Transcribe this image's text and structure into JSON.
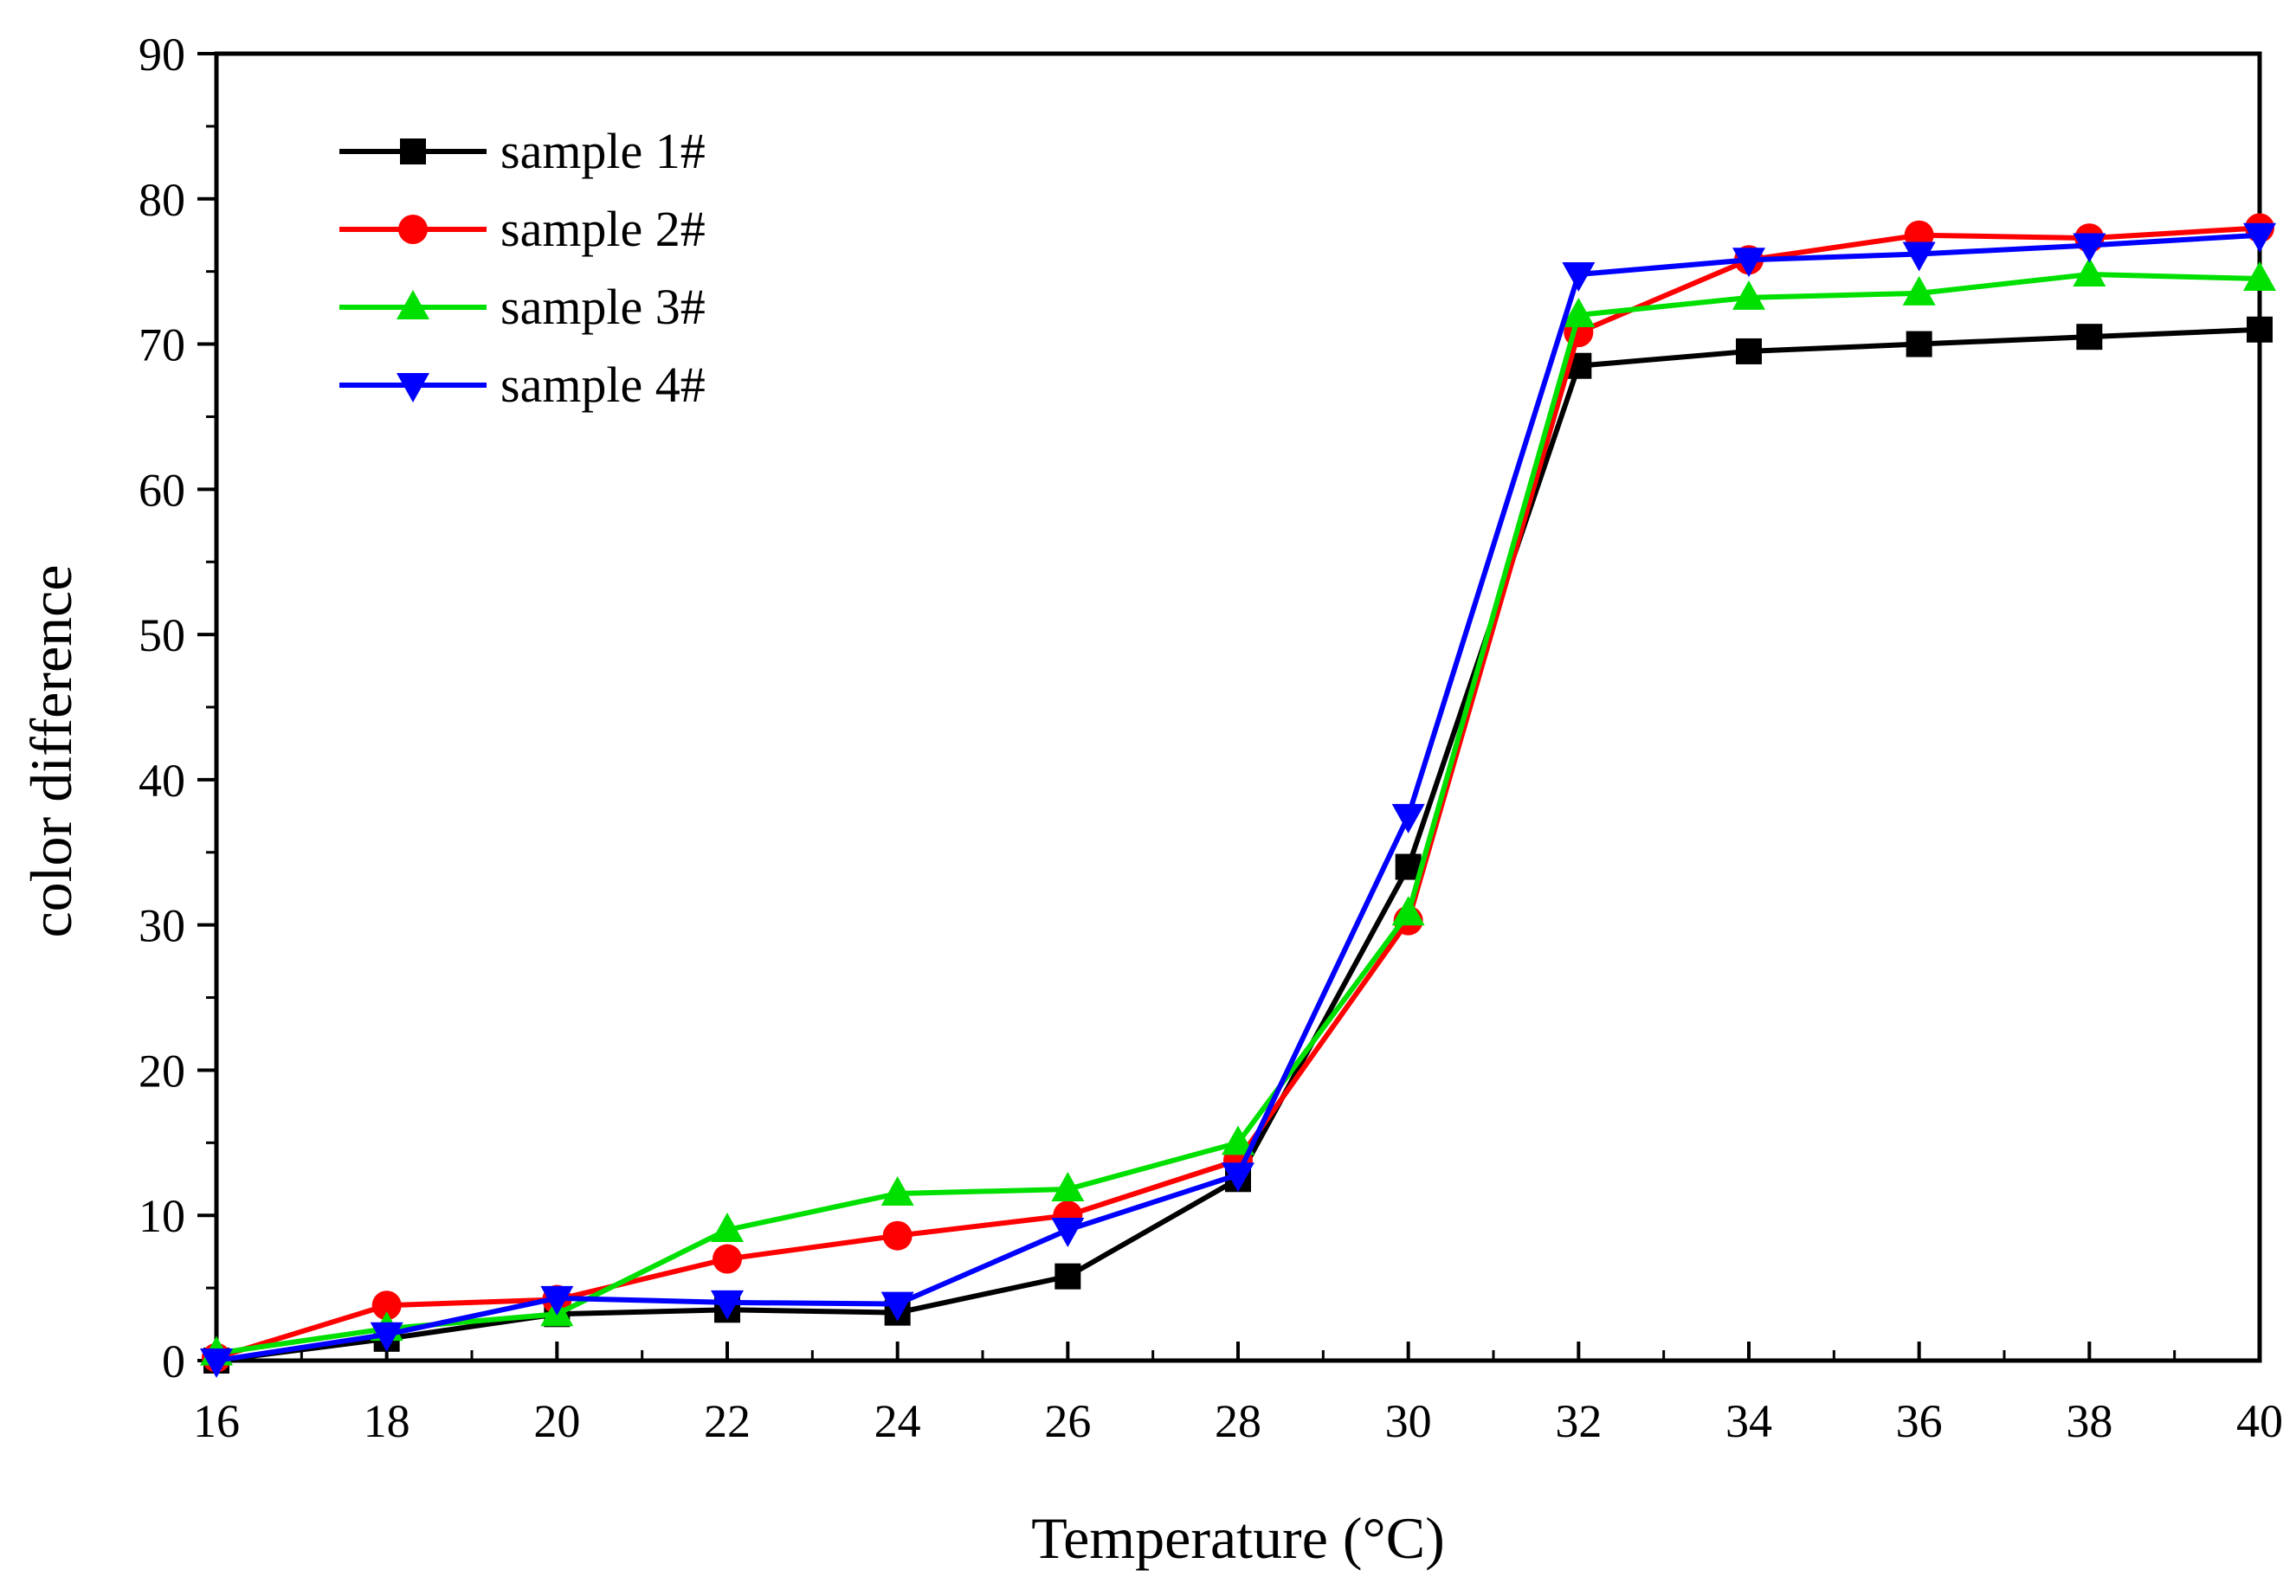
{
  "chart_data": {
    "type": "line",
    "title": "",
    "xlabel": "Temperature (°C)",
    "ylabel": "color difference",
    "xlim": [
      16,
      40
    ],
    "ylim": [
      0,
      90
    ],
    "x_ticks": [
      "16",
      "18",
      "20",
      "22",
      "24",
      "26",
      "28",
      "30",
      "32",
      "34",
      "36",
      "38",
      "40"
    ],
    "y_ticks": [
      "0",
      "10",
      "20",
      "30",
      "40",
      "50",
      "60",
      "70",
      "80",
      "90"
    ],
    "x": [
      16,
      18,
      20,
      22,
      24,
      26,
      28,
      30,
      32,
      34,
      36,
      38,
      40
    ],
    "legend_position": "top-left",
    "grid": false,
    "series": [
      {
        "name": "sample 1#",
        "color": "#000000",
        "marker": "square",
        "values": [
          0,
          1.5,
          3.2,
          3.5,
          3.3,
          5.8,
          12.5,
          34,
          68.5,
          69.5,
          70,
          70.5,
          71
        ]
      },
      {
        "name": "sample 2#",
        "color": "#ff0000",
        "marker": "circle",
        "values": [
          0.2,
          3.8,
          4.2,
          7,
          8.6,
          10,
          13.8,
          30.3,
          70.8,
          75.8,
          77.5,
          77.3,
          78
        ]
      },
      {
        "name": "sample 3#",
        "color": "#00e000",
        "marker": "triangle-up",
        "values": [
          0.5,
          2.2,
          3.2,
          9,
          11.5,
          11.8,
          15,
          30.8,
          72,
          73.2,
          73.5,
          74.8,
          74.5
        ]
      },
      {
        "name": "sample 4#",
        "color": "#0000ff",
        "marker": "triangle-down",
        "values": [
          0,
          1.8,
          4.3,
          4,
          3.9,
          9,
          12.8,
          37.5,
          74.8,
          75.8,
          76.2,
          76.8,
          77.5
        ]
      }
    ]
  }
}
